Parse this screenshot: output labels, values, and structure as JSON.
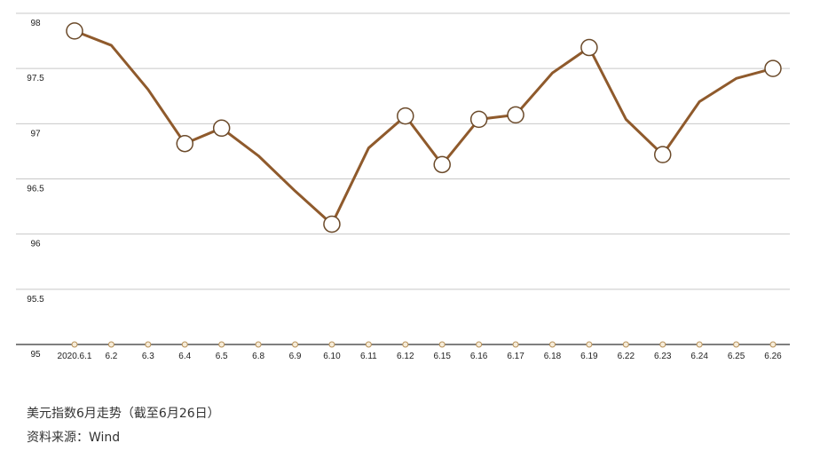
{
  "chart_data": {
    "type": "line",
    "categories": [
      "2020.6.1",
      "6.2",
      "6.3",
      "6.4",
      "6.5",
      "6.8",
      "6.9",
      "6.10",
      "6.11",
      "6.12",
      "6.15",
      "6.16",
      "6.17",
      "6.18",
      "6.19",
      "6.22",
      "6.23",
      "6.24",
      "6.25",
      "6.26"
    ],
    "series": [
      {
        "name": "美元指数",
        "color": "#8f5a2c",
        "values": [
          97.84,
          97.71,
          97.31,
          96.82,
          96.96,
          96.71,
          96.39,
          96.09,
          96.78,
          97.07,
          96.63,
          97.04,
          97.08,
          97.46,
          97.69,
          97.04,
          96.72,
          97.2,
          97.41,
          97.5
        ],
        "markers": [
          true,
          false,
          false,
          true,
          true,
          false,
          false,
          true,
          false,
          true,
          true,
          true,
          true,
          false,
          true,
          false,
          true,
          false,
          false,
          true
        ]
      }
    ],
    "ylim": [
      95,
      98
    ],
    "yticks": [
      95,
      95.5,
      96,
      96.5,
      97,
      97.5,
      98
    ],
    "grid": true,
    "caption": "美元指数6月走势（截至6月26日）",
    "source": "资料来源：Wind"
  }
}
